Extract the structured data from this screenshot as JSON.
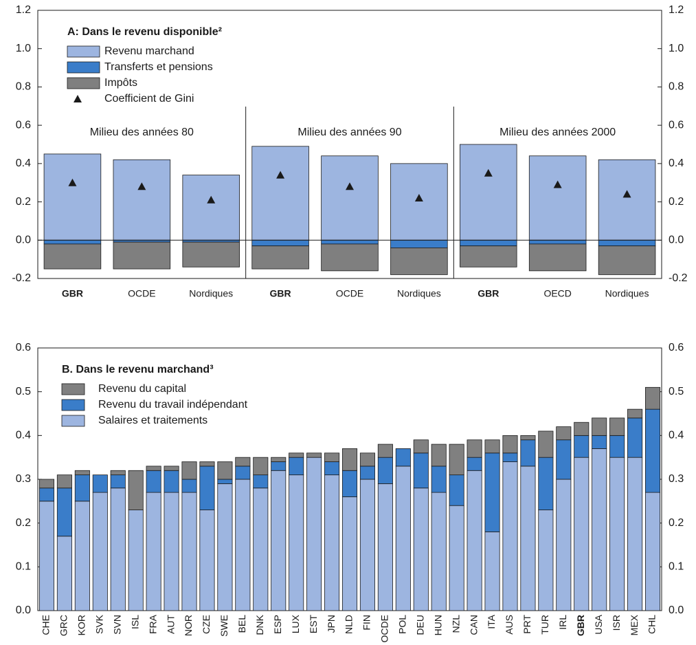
{
  "chart_data": [
    {
      "type": "bar",
      "stacked": true,
      "title": "A: Dans le revenu disponible²",
      "group_labels": [
        "Milieu des années 80",
        "Milieu des années 90",
        "Milieu des années 2000"
      ],
      "categories": [
        "GBR",
        "OCDE",
        "Nordiques",
        "GBR",
        "OCDE",
        "Nordiques",
        "GBR",
        "OECD",
        "Nordiques"
      ],
      "highlight": "GBR",
      "series": [
        {
          "name": "Revenu marchand",
          "color": "#9db5e0",
          "values": [
            0.45,
            0.42,
            0.34,
            0.49,
            0.44,
            0.4,
            0.5,
            0.44,
            0.42
          ]
        },
        {
          "name": "Transferts et pensions",
          "color": "#3a7dc9",
          "values": [
            -0.02,
            -0.01,
            -0.01,
            -0.03,
            -0.02,
            -0.04,
            -0.03,
            -0.02,
            -0.03
          ]
        },
        {
          "name": "Impôts",
          "color": "#7f7f7f",
          "values": [
            -0.13,
            -0.14,
            -0.13,
            -0.12,
            -0.14,
            -0.14,
            -0.11,
            -0.14,
            -0.15
          ]
        },
        {
          "name": "Coefficient de Gini",
          "color": "#1a1a1a",
          "marker": "triangle",
          "values": [
            0.3,
            0.28,
            0.21,
            0.34,
            0.28,
            0.22,
            0.35,
            0.29,
            0.24
          ]
        }
      ],
      "ylim": [
        -0.2,
        1.2
      ],
      "yticks": [
        -0.2,
        {
          "value": 0,
          "label": "0.0"
        },
        0.2,
        0.4,
        0.6,
        0.8,
        {
          "value": 1,
          "label": "1.0"
        },
        1.2
      ]
    },
    {
      "type": "bar",
      "stacked": true,
      "title": "B. Dans le revenu marchand³",
      "categories": [
        "CHE",
        "GRC",
        "KOR",
        "SVK",
        "SVN",
        "ISL",
        "FRA",
        "AUT",
        "NOR",
        "CZE",
        "SWE",
        "BEL",
        "DNK",
        "ESP",
        "LUX",
        "EST",
        "JPN",
        "NLD",
        "FIN",
        "OCDE",
        "POL",
        "DEU",
        "HUN",
        "NZL",
        "CAN",
        "ITA",
        "AUS",
        "PRT",
        "TUR",
        "IRL",
        "GBR",
        "USA",
        "ISR",
        "MEX",
        "CHL"
      ],
      "highlight": "GBR",
      "series": [
        {
          "name": "Salaires et traitements",
          "color": "#9db5e0",
          "values": [
            0.25,
            0.17,
            0.25,
            0.27,
            0.28,
            0.23,
            0.27,
            0.27,
            0.27,
            0.23,
            0.29,
            0.3,
            0.28,
            0.32,
            0.31,
            0.35,
            0.31,
            0.26,
            0.3,
            0.29,
            0.33,
            0.28,
            0.27,
            0.24,
            0.32,
            0.18,
            0.34,
            0.33,
            0.23,
            0.3,
            0.35,
            0.37,
            0.35,
            0.35,
            0.27
          ]
        },
        {
          "name": "Revenu du travail indépendant",
          "color": "#3a7dc9",
          "values": [
            0.03,
            0.11,
            0.06,
            0.04,
            0.03,
            0,
            0.05,
            0.05,
            0.03,
            0.1,
            0.01,
            0.03,
            0.03,
            0.02,
            0.04,
            0,
            0.03,
            0.06,
            0.03,
            0.06,
            0.04,
            0.08,
            0.06,
            0.07,
            0.03,
            0.18,
            0.02,
            0.06,
            0.12,
            0.09,
            0.05,
            0.03,
            0.05,
            0.09,
            0.19
          ]
        },
        {
          "name": "Revenu du capital",
          "color": "#808080",
          "values": [
            0.02,
            0.03,
            0.01,
            0,
            0.01,
            0.09,
            0.01,
            0.01,
            0.04,
            0.01,
            0.04,
            0.02,
            0.04,
            0.01,
            0.01,
            0.01,
            0.02,
            0.05,
            0.03,
            0.03,
            0,
            0.03,
            0.05,
            0.07,
            0.04,
            0.03,
            0.04,
            0.01,
            0.06,
            0.03,
            0.03,
            0.04,
            0.04,
            0.02,
            0.05
          ]
        }
      ],
      "legend_order": "reverse",
      "ylim": [
        0,
        0.6
      ],
      "yticks": [
        {
          "value": 0,
          "label": "0.0"
        },
        0.1,
        0.2,
        0.3,
        0.4,
        0.5,
        0.6
      ]
    }
  ]
}
